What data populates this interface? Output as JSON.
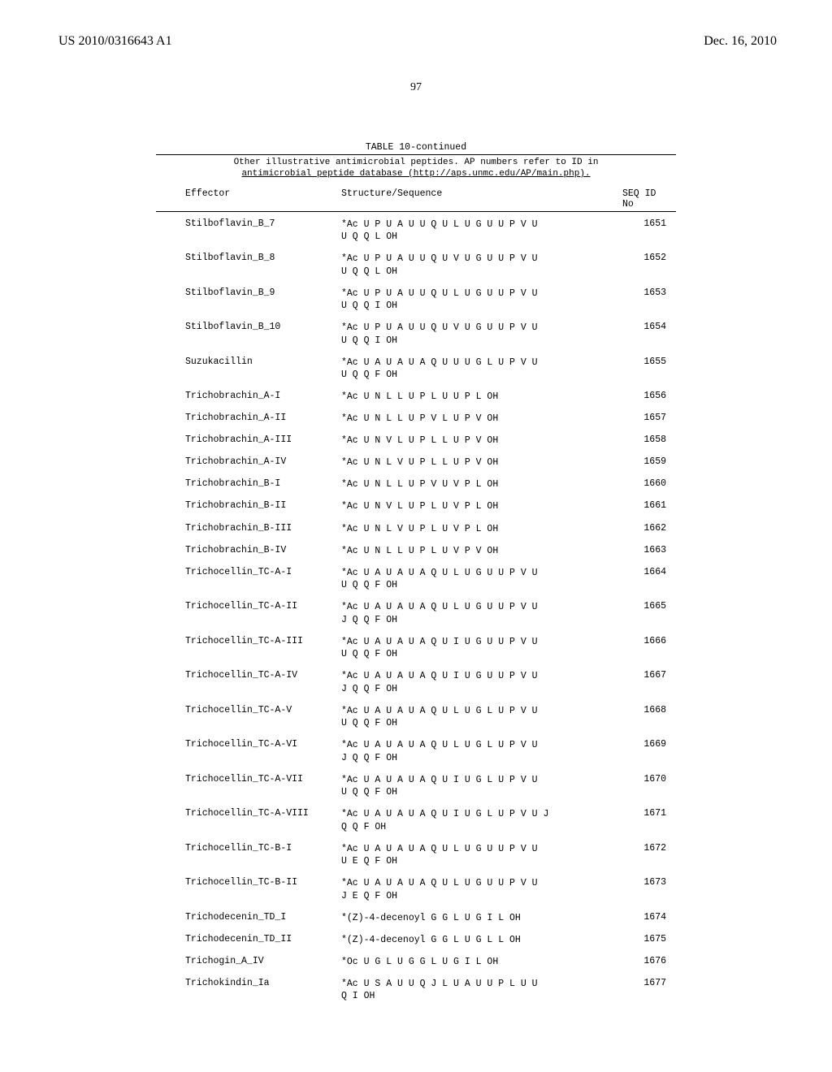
{
  "header": {
    "left": "US 2010/0316643 A1",
    "right": "Dec. 16, 2010",
    "page_number": "97"
  },
  "table": {
    "caption": "TABLE 10-continued",
    "sub_caption_line1": "Other illustrative antimicrobial peptides. AP numbers refer to ID in",
    "sub_caption_line2": "antimicrobial peptide database (http://aps.unmc.edu/AP/main.php).",
    "col_headers": {
      "effector": "Effector",
      "structure": "Structure/Sequence",
      "seqid_top": "SEQ ID",
      "seqid_bottom": "No"
    },
    "rows": [
      {
        "effector": "Stilboflavin_B_7",
        "structure": "*Ac U P U A U U Q U L U G U U P V U\nU Q Q L OH",
        "seqid": "1651"
      },
      {
        "effector": "Stilboflavin_B_8",
        "structure": "*Ac U P U A U U Q U V U G U U P V U\nU Q Q L OH",
        "seqid": "1652"
      },
      {
        "effector": "Stilboflavin_B_9",
        "structure": "*Ac U P U A U U Q U L U G U U P V U\nU Q Q I OH",
        "seqid": "1653"
      },
      {
        "effector": "Stilboflavin_B_10",
        "structure": "*Ac U P U A U U Q U V U G U U P V U\nU Q Q I OH",
        "seqid": "1654"
      },
      {
        "effector": "Suzukacillin",
        "structure": "*Ac U A U A U A Q U U U G L U P V U\nU Q Q F OH",
        "seqid": "1655"
      },
      {
        "effector": "Trichobrachin_A-I",
        "structure": "*Ac U N L L U P L U U P L OH",
        "seqid": "1656"
      },
      {
        "effector": "Trichobrachin_A-II",
        "structure": "*Ac U N L L U P V L U P V OH",
        "seqid": "1657"
      },
      {
        "effector": "Trichobrachin_A-III",
        "structure": "*Ac U N V L U P L L U P V OH",
        "seqid": "1658"
      },
      {
        "effector": "Trichobrachin_A-IV",
        "structure": "*Ac U N L V U P L L U P V OH",
        "seqid": "1659"
      },
      {
        "effector": "Trichobrachin_B-I",
        "structure": "*Ac U N L L U P V U V P L OH",
        "seqid": "1660"
      },
      {
        "effector": "Trichobrachin_B-II",
        "structure": "*Ac U N V L U P L U V P L OH",
        "seqid": "1661"
      },
      {
        "effector": "Trichobrachin_B-III",
        "structure": "*Ac U N L V U P L U V P L OH",
        "seqid": "1662"
      },
      {
        "effector": "Trichobrachin_B-IV",
        "structure": "*Ac U N L L U P L U V P V OH",
        "seqid": "1663"
      },
      {
        "effector": "Trichocellin_TC-A-I",
        "structure": "*Ac U A U A U A Q U L U G U U P V U\nU Q Q F OH",
        "seqid": "1664"
      },
      {
        "effector": "Trichocellin_TC-A-II",
        "structure": "*Ac U A U A U A Q U L U G U U P V U\nJ Q Q F OH",
        "seqid": "1665"
      },
      {
        "effector": "Trichocellin_TC-A-III",
        "structure": "*Ac U A U A U A Q U I U G U U P V U\nU Q Q F OH",
        "seqid": "1666"
      },
      {
        "effector": "Trichocellin_TC-A-IV",
        "structure": "*Ac U A U A U A Q U I U G U U P V U\nJ Q Q F OH",
        "seqid": "1667"
      },
      {
        "effector": "Trichocellin_TC-A-V",
        "structure": "*Ac U A U A U A Q U L U G L U P V U\nU Q Q F OH",
        "seqid": "1668"
      },
      {
        "effector": "Trichocellin_TC-A-VI",
        "structure": "*Ac U A U A U A Q U L U G L U P V U\nJ Q Q F OH",
        "seqid": "1669"
      },
      {
        "effector": "Trichocellin_TC-A-VII",
        "structure": "*Ac U A U A U A Q U I U G L U P V U\nU Q Q F OH",
        "seqid": "1670"
      },
      {
        "effector": "Trichocellin_TC-A-VIII",
        "structure": "*Ac U A U A U A Q U I U G L U P V U J\nQ Q F OH",
        "seqid": "1671"
      },
      {
        "effector": "Trichocellin_TC-B-I",
        "structure": "*Ac U A U A U A Q U L U G U U P V U\nU E Q F OH",
        "seqid": "1672"
      },
      {
        "effector": "Trichocellin_TC-B-II",
        "structure": "*Ac U A U A U A Q U L U G U U P V U\nJ E Q F OH",
        "seqid": "1673"
      },
      {
        "effector": "Trichodecenin_TD_I",
        "structure": "*(Z)-4-decenoyl G G L U G I L OH",
        "seqid": "1674"
      },
      {
        "effector": "Trichodecenin_TD_II",
        "structure": "*(Z)-4-decenoyl G G L U G L L OH",
        "seqid": "1675"
      },
      {
        "effector": "Trichogin_A_IV",
        "structure": "*Oc U G L U G G L U G I L OH",
        "seqid": "1676"
      },
      {
        "effector": "Trichokindin_Ia",
        "structure": "*Ac U S A U U Q J L U A U U P L U U\nQ I OH",
        "seqid": "1677"
      }
    ]
  },
  "style": {
    "page_bg": "#ffffff",
    "text_color": "#000000",
    "mono_font_size": 11.5,
    "serif_font_size": 16
  }
}
